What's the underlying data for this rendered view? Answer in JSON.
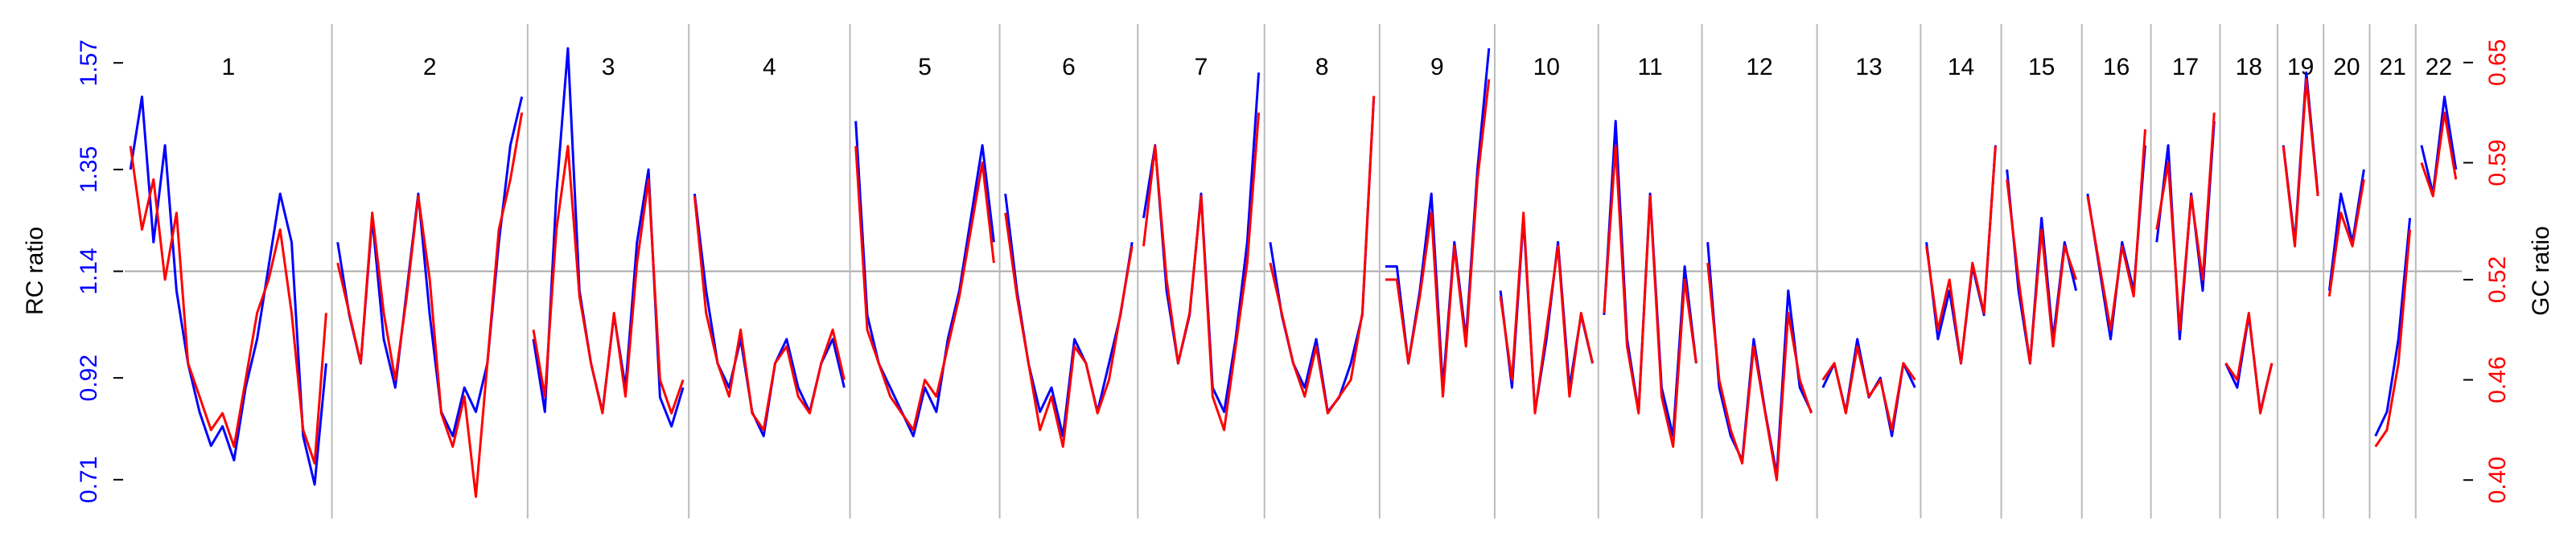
{
  "chart_data": {
    "type": "line",
    "ylabel": "RC ratio",
    "y2label": "GC ratio",
    "rc_color": "#0000ff",
    "gc_color": "#ff0000",
    "ylim": [
      0.63,
      1.65
    ],
    "yticks": [
      0.71,
      0.92,
      1.14,
      1.35,
      1.57
    ],
    "y2lim": [
      0.377,
      0.673
    ],
    "y2ticks": [
      {
        "value": 0.4,
        "label": "0.40"
      },
      0.46,
      0.52,
      0.59,
      0.65
    ],
    "refline": 1.14,
    "chromosomes": [
      {
        "label": "1",
        "rc": [
          1.35,
          1.5,
          1.2,
          1.4,
          1.1,
          0.95,
          0.85,
          0.78,
          0.82,
          0.75,
          0.9,
          1.0,
          1.15,
          1.3,
          1.2,
          0.8,
          0.7,
          0.95
        ],
        "gc": [
          0.6,
          0.55,
          0.58,
          0.52,
          0.56,
          0.47,
          0.45,
          0.43,
          0.44,
          0.42,
          0.46,
          0.5,
          0.52,
          0.55,
          0.5,
          0.43,
          0.41,
          0.5
        ]
      },
      {
        "label": "2",
        "rc": [
          1.2,
          1.05,
          0.95,
          1.25,
          1.0,
          0.9,
          1.1,
          1.3,
          1.05,
          0.85,
          0.8,
          0.9,
          0.85,
          0.95,
          1.2,
          1.4,
          1.5
        ],
        "gc": [
          0.53,
          0.5,
          0.47,
          0.56,
          0.5,
          0.46,
          0.51,
          0.57,
          0.52,
          0.44,
          0.42,
          0.45,
          0.39,
          0.47,
          0.55,
          0.58,
          0.62
        ]
      },
      {
        "label": "3",
        "rc": [
          1.0,
          0.85,
          1.3,
          1.6,
          1.1,
          0.95,
          0.85,
          1.05,
          0.9,
          1.2,
          1.35,
          0.88,
          0.82,
          0.9
        ],
        "gc": [
          0.49,
          0.45,
          0.55,
          0.6,
          0.51,
          0.47,
          0.44,
          0.5,
          0.45,
          0.53,
          0.58,
          0.46,
          0.44,
          0.46
        ]
      },
      {
        "label": "4",
        "rc": [
          1.3,
          1.1,
          0.95,
          0.9,
          1.0,
          0.85,
          0.8,
          0.95,
          1.0,
          0.9,
          0.85,
          0.95,
          1.0,
          0.9
        ],
        "gc": [
          0.57,
          0.5,
          0.47,
          0.45,
          0.49,
          0.44,
          0.43,
          0.47,
          0.48,
          0.45,
          0.44,
          0.47,
          0.49,
          0.46
        ]
      },
      {
        "label": "5",
        "rc": [
          1.45,
          1.05,
          0.95,
          0.9,
          0.85,
          0.8,
          0.9,
          0.85,
          1.0,
          1.1,
          1.25,
          1.4,
          1.2
        ],
        "gc": [
          0.6,
          0.49,
          0.47,
          0.45,
          0.44,
          0.43,
          0.46,
          0.45,
          0.48,
          0.51,
          0.55,
          0.59,
          0.53
        ]
      },
      {
        "label": "6",
        "rc": [
          1.3,
          1.1,
          0.95,
          0.85,
          0.9,
          0.8,
          1.0,
          0.95,
          0.85,
          0.95,
          1.05,
          1.2
        ],
        "gc": [
          0.56,
          0.51,
          0.47,
          0.43,
          0.45,
          0.42,
          0.48,
          0.47,
          0.44,
          0.46,
          0.5,
          0.54
        ]
      },
      {
        "label": "7",
        "rc": [
          1.25,
          1.4,
          1.1,
          0.95,
          1.05,
          1.3,
          0.9,
          0.85,
          1.0,
          1.2,
          1.55
        ],
        "gc": [
          0.54,
          0.6,
          0.52,
          0.47,
          0.5,
          0.57,
          0.45,
          0.43,
          0.48,
          0.53,
          0.62
        ]
      },
      {
        "label": "8",
        "rc": [
          1.2,
          1.05,
          0.95,
          0.9,
          1.0,
          0.85,
          0.88,
          0.95,
          1.05,
          1.5
        ],
        "gc": [
          0.53,
          0.5,
          0.47,
          0.45,
          0.48,
          0.44,
          0.45,
          0.46,
          0.5,
          0.63
        ]
      },
      {
        "label": "9",
        "rc": [
          1.15,
          1.15,
          0.95,
          1.1,
          1.3,
          0.9,
          1.2,
          1.0,
          1.35,
          1.6
        ],
        "gc": [
          0.52,
          0.52,
          0.47,
          0.51,
          0.56,
          0.45,
          0.54,
          0.48,
          0.58,
          0.64
        ]
      },
      {
        "label": "10",
        "rc": [
          1.1,
          0.9,
          1.25,
          0.85,
          1.0,
          1.2,
          0.9,
          1.05,
          0.95
        ],
        "gc": [
          0.51,
          0.46,
          0.56,
          0.44,
          0.49,
          0.54,
          0.45,
          0.5,
          0.47
        ]
      },
      {
        "label": "11",
        "rc": [
          1.05,
          1.45,
          1.0,
          0.85,
          1.3,
          0.9,
          0.8,
          1.15,
          0.95
        ],
        "gc": [
          0.5,
          0.6,
          0.48,
          0.44,
          0.57,
          0.45,
          0.42,
          0.52,
          0.47
        ]
      },
      {
        "label": "12",
        "rc": [
          1.2,
          0.9,
          0.8,
          0.75,
          1.0,
          0.85,
          0.72,
          1.1,
          0.9,
          0.85
        ],
        "gc": [
          0.53,
          0.46,
          0.43,
          0.41,
          0.48,
          0.44,
          0.4,
          0.5,
          0.46,
          0.44
        ]
      },
      {
        "label": "13",
        "rc": [
          0.9,
          0.95,
          0.85,
          1.0,
          0.88,
          0.92,
          0.8,
          0.95,
          0.9
        ],
        "gc": [
          0.46,
          0.47,
          0.44,
          0.48,
          0.45,
          0.46,
          0.43,
          0.47,
          0.46
        ]
      },
      {
        "label": "14",
        "rc": [
          1.2,
          1.0,
          1.1,
          0.95,
          1.15,
          1.05,
          1.4
        ],
        "gc": [
          0.54,
          0.49,
          0.52,
          0.47,
          0.53,
          0.5,
          0.6
        ]
      },
      {
        "label": "15",
        "rc": [
          1.35,
          1.1,
          0.95,
          1.25,
          1.0,
          1.2,
          1.1
        ],
        "gc": [
          0.58,
          0.52,
          0.47,
          0.55,
          0.48,
          0.54,
          0.52
        ]
      },
      {
        "label": "16",
        "rc": [
          1.3,
          1.15,
          1.0,
          1.2,
          1.1,
          1.4
        ],
        "gc": [
          0.57,
          0.53,
          0.49,
          0.54,
          0.51,
          0.61
        ]
      },
      {
        "label": "17",
        "rc": [
          1.2,
          1.4,
          1.0,
          1.3,
          1.1,
          1.45
        ],
        "gc": [
          0.55,
          0.59,
          0.49,
          0.57,
          0.52,
          0.62
        ]
      },
      {
        "label": "18",
        "rc": [
          0.95,
          0.9,
          1.05,
          0.85,
          0.95
        ],
        "gc": [
          0.47,
          0.46,
          0.5,
          0.44,
          0.47
        ]
      },
      {
        "label": "19",
        "rc": [
          1.4,
          1.2,
          1.55,
          1.3
        ],
        "gc": [
          0.6,
          0.54,
          0.64,
          0.57
        ]
      },
      {
        "label": "20",
        "rc": [
          1.1,
          1.3,
          1.2,
          1.35
        ],
        "gc": [
          0.51,
          0.56,
          0.54,
          0.58
        ]
      },
      {
        "label": "21",
        "rc": [
          0.8,
          0.85,
          1.0,
          1.25
        ],
        "gc": [
          0.42,
          0.43,
          0.47,
          0.55
        ]
      },
      {
        "label": "22",
        "rc": [
          1.4,
          1.3,
          1.5,
          1.35
        ],
        "gc": [
          0.59,
          0.57,
          0.62,
          0.58
        ]
      }
    ]
  }
}
